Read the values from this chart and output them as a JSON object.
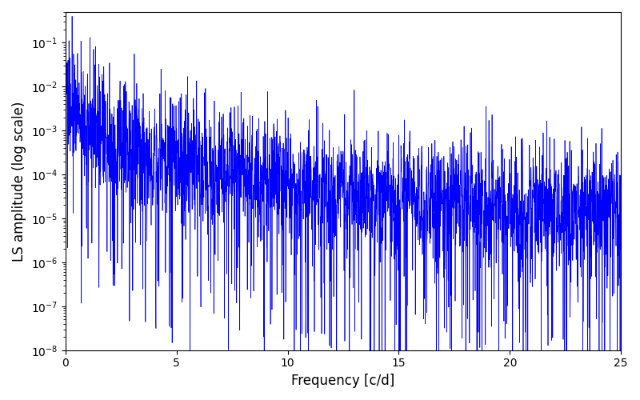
{
  "xlabel": "Frequency [c/d]",
  "ylabel": "LS amplitude (log scale)",
  "xlim": [
    0,
    25
  ],
  "ylim": [
    1e-08,
    0.5
  ],
  "line_color": "#0000ff",
  "line_width": 0.5,
  "background_color": "#ffffff",
  "seed": 137,
  "n_points": 3000,
  "freq_max": 25.0,
  "xlabel_fontsize": 12,
  "ylabel_fontsize": 12,
  "tick_fontsize": 10,
  "xticks": [
    0,
    5,
    10,
    15,
    20,
    25
  ]
}
